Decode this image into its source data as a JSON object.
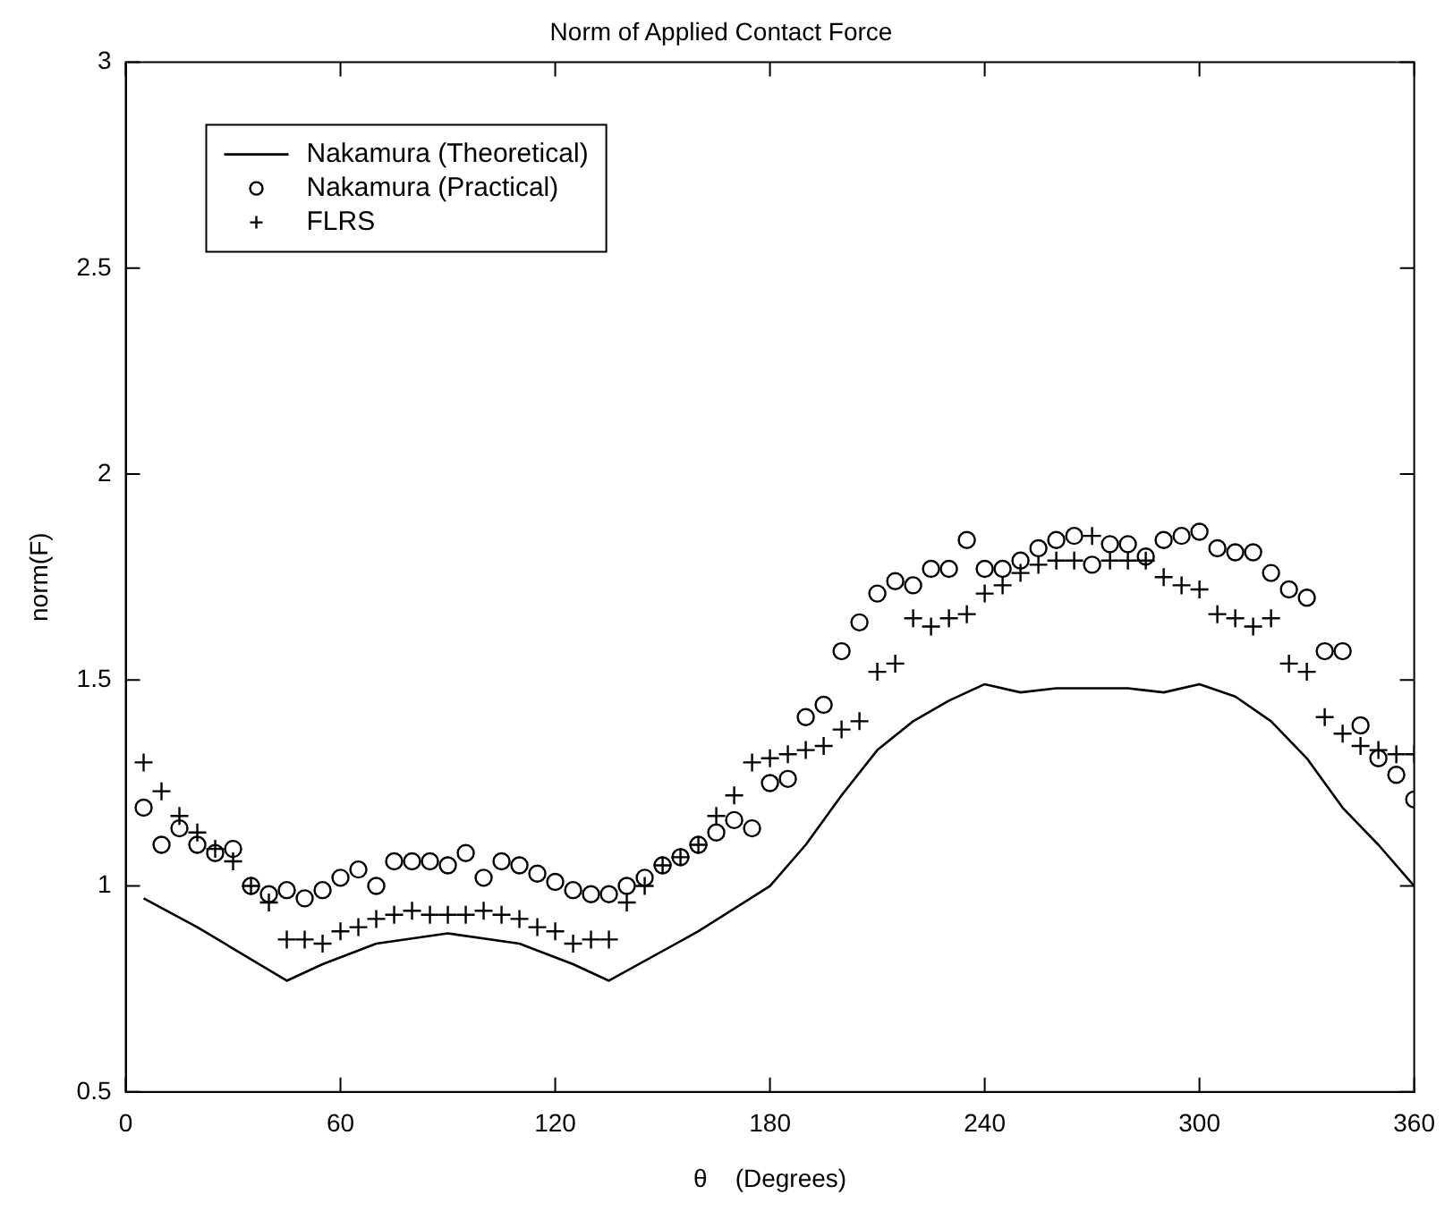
{
  "chart_data": {
    "type": "scatter",
    "title": "Norm of Applied Contact Force",
    "xlabel": "θ    (Degrees)",
    "ylabel": "norm(F)",
    "xlim": [
      0,
      360
    ],
    "xticks": [
      0,
      60,
      120,
      180,
      240,
      300,
      360
    ],
    "ylim": [
      0.5,
      3
    ],
    "yticks": [
      0.5,
      1,
      1.5,
      2,
      2.5,
      3
    ],
    "grid": false,
    "legend": "top left",
    "series": [
      {
        "name": "Nakamura (Theoretical)",
        "type": "line",
        "marker": "none",
        "line_style": "solid",
        "color": "#000000",
        "x": [
          5,
          20,
          45,
          55,
          70,
          90,
          110,
          125,
          135,
          160,
          180,
          190,
          200,
          210,
          220,
          230,
          240,
          250,
          260,
          280,
          290,
          300,
          310,
          320,
          330,
          340,
          350,
          360
        ],
        "values": [
          0.97,
          0.9,
          0.77,
          0.81,
          0.86,
          0.885,
          0.86,
          0.81,
          0.77,
          0.89,
          1.0,
          1.1,
          1.22,
          1.33,
          1.4,
          1.45,
          1.49,
          1.47,
          1.48,
          1.48,
          1.47,
          1.49,
          1.46,
          1.4,
          1.31,
          1.19,
          1.1,
          1.0
        ]
      },
      {
        "name": "Nakamura (Practical)",
        "marker": "circle",
        "color": "#000000",
        "x": [
          5,
          10,
          15,
          20,
          25,
          30,
          35,
          40,
          45,
          50,
          55,
          60,
          65,
          70,
          75,
          80,
          85,
          90,
          95,
          100,
          105,
          110,
          115,
          120,
          125,
          130,
          135,
          140,
          145,
          150,
          155,
          160,
          165,
          170,
          175,
          180,
          185,
          190,
          195,
          200,
          205,
          210,
          215,
          220,
          225,
          230,
          235,
          240,
          245,
          250,
          255,
          260,
          265,
          270,
          275,
          280,
          285,
          290,
          295,
          300,
          305,
          310,
          315,
          320,
          325,
          330,
          335,
          340,
          345,
          350,
          355,
          360
        ],
        "values": [
          1.19,
          1.1,
          1.14,
          1.1,
          1.08,
          1.09,
          1.0,
          0.98,
          0.99,
          0.97,
          0.99,
          1.02,
          1.04,
          1.0,
          1.06,
          1.06,
          1.06,
          1.05,
          1.08,
          1.02,
          1.06,
          1.05,
          1.03,
          1.01,
          0.99,
          0.98,
          0.98,
          1.0,
          1.02,
          1.05,
          1.07,
          1.1,
          1.13,
          1.16,
          1.14,
          1.25,
          1.26,
          1.41,
          1.44,
          1.57,
          1.64,
          1.71,
          1.74,
          1.73,
          1.77,
          1.77,
          1.84,
          1.77,
          1.77,
          1.79,
          1.82,
          1.84,
          1.85,
          1.78,
          1.83,
          1.83,
          1.8,
          1.84,
          1.85,
          1.86,
          1.82,
          1.81,
          1.81,
          1.76,
          1.72,
          1.7,
          1.57,
          1.57,
          1.39,
          1.31,
          1.27,
          1.21
        ]
      },
      {
        "name": "FLRS",
        "marker": "cross",
        "color": "#000000",
        "x": [
          5,
          10,
          15,
          20,
          25,
          30,
          35,
          40,
          45,
          50,
          55,
          60,
          65,
          70,
          75,
          80,
          85,
          90,
          95,
          100,
          105,
          110,
          115,
          120,
          125,
          130,
          135,
          140,
          145,
          150,
          155,
          160,
          165,
          170,
          175,
          180,
          185,
          190,
          195,
          200,
          205,
          210,
          215,
          220,
          225,
          230,
          235,
          240,
          245,
          250,
          255,
          260,
          265,
          270,
          275,
          280,
          285,
          290,
          295,
          300,
          305,
          310,
          315,
          320,
          325,
          330,
          335,
          340,
          345,
          350,
          355,
          360
        ],
        "values": [
          1.3,
          1.23,
          1.17,
          1.13,
          1.09,
          1.06,
          1.0,
          0.96,
          0.87,
          0.87,
          0.86,
          0.89,
          0.9,
          0.92,
          0.93,
          0.94,
          0.93,
          0.93,
          0.93,
          0.94,
          0.93,
          0.92,
          0.9,
          0.89,
          0.86,
          0.87,
          0.87,
          0.96,
          1.0,
          1.05,
          1.07,
          1.1,
          1.17,
          1.22,
          1.3,
          1.31,
          1.32,
          1.33,
          1.34,
          1.38,
          1.4,
          1.52,
          1.54,
          1.65,
          1.63,
          1.65,
          1.66,
          1.71,
          1.73,
          1.76,
          1.78,
          1.79,
          1.79,
          1.85,
          1.79,
          1.79,
          1.79,
          1.75,
          1.73,
          1.72,
          1.66,
          1.65,
          1.63,
          1.65,
          1.54,
          1.52,
          1.41,
          1.37,
          1.34,
          1.33,
          1.32,
          1.32
        ]
      }
    ]
  }
}
